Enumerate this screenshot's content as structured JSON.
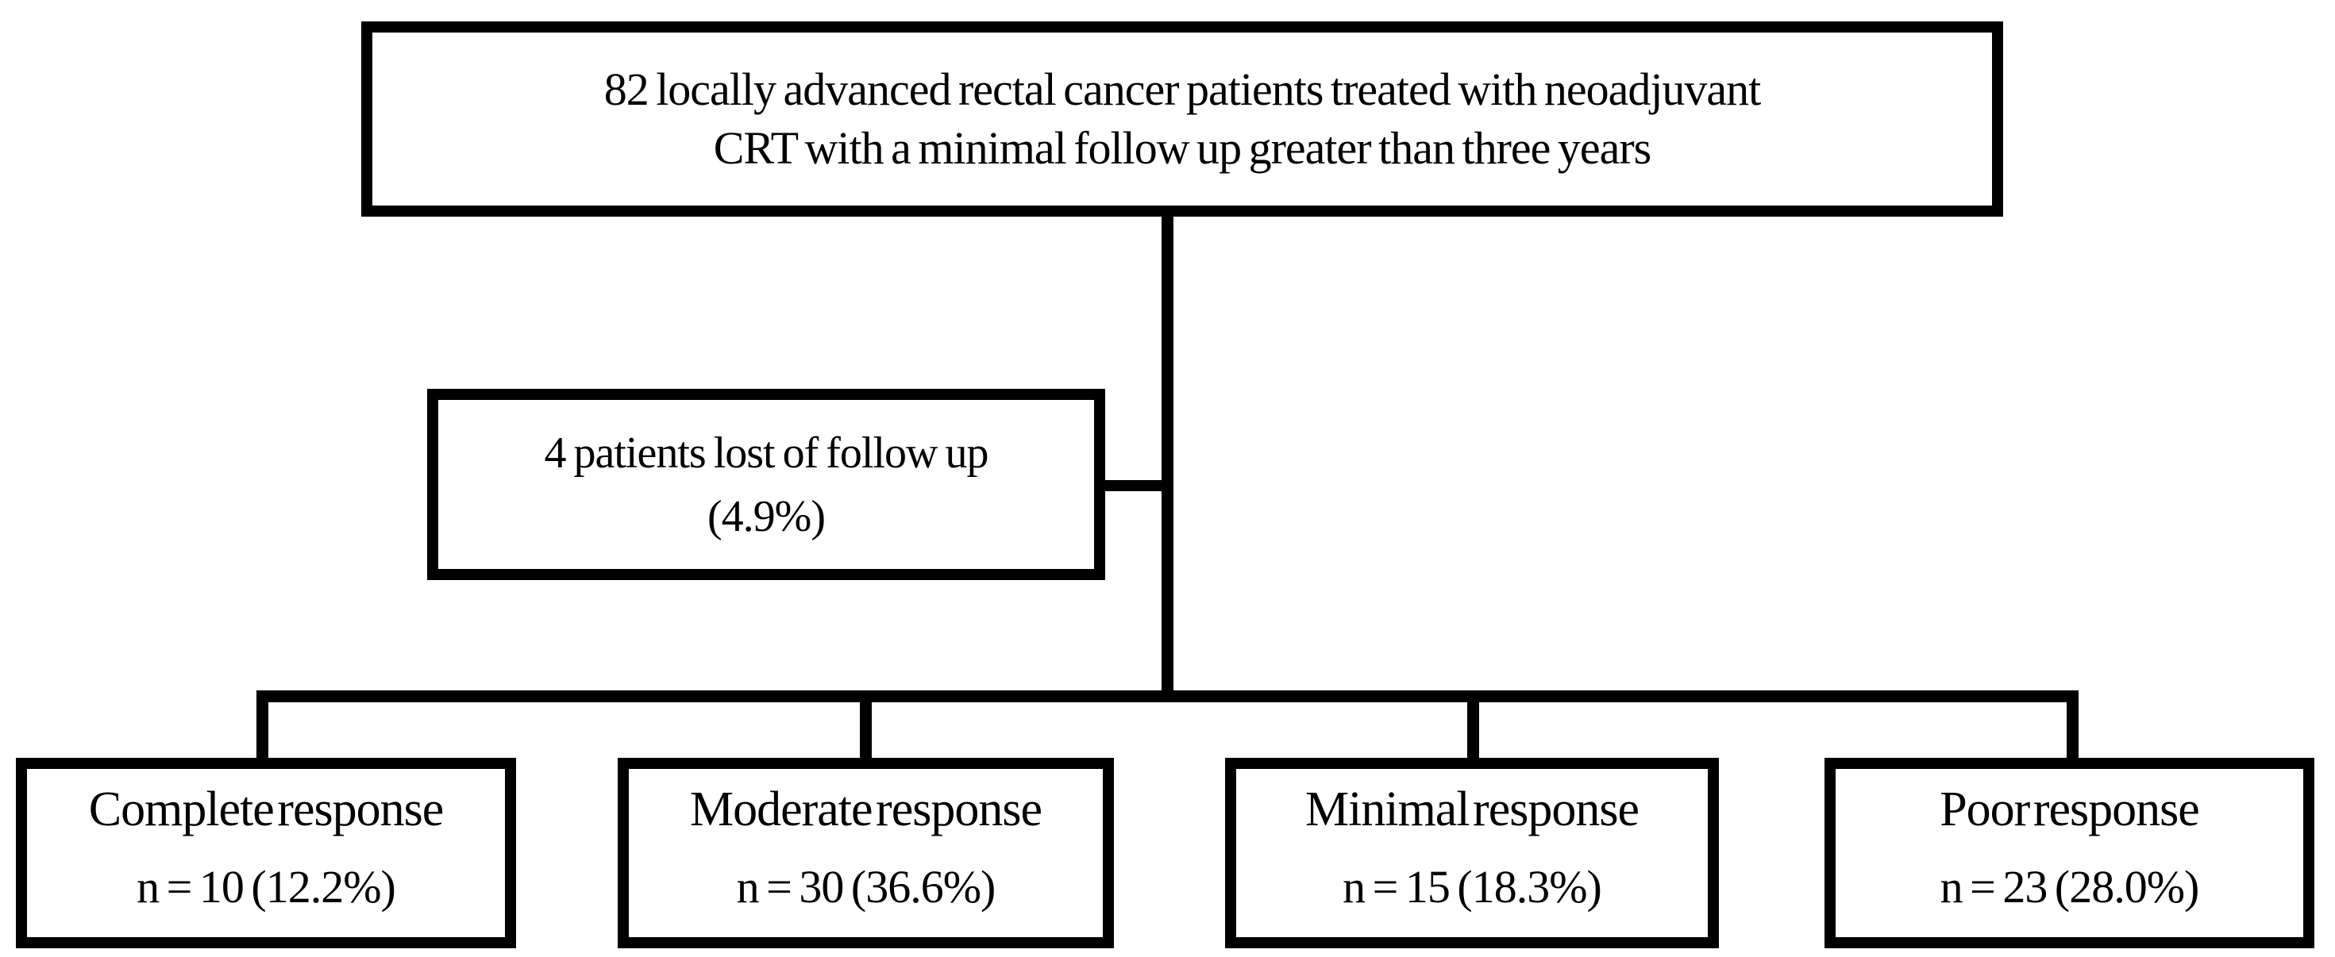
{
  "flowchart": {
    "root_box": {
      "line1": "82 locally advanced rectal cancer patients treated with neoadjuvant",
      "line2": "CRT with a minimal follow up greater than three years"
    },
    "exclusion_box": {
      "line1": "4 patients lost of follow up",
      "line2": "(4.9%)"
    },
    "outcome_boxes": [
      {
        "label": "Complete response",
        "value": "n = 10 (12.2%)"
      },
      {
        "label": "Moderate response",
        "value": "n = 30 (36.6%)"
      },
      {
        "label": "Minimal response",
        "value": "n = 15 (18.3%)"
      },
      {
        "label": "Poor response",
        "value": "n = 23 (28.0%)"
      }
    ],
    "colors": {
      "line": "#000000",
      "text": "#000000",
      "background": "#ffffff"
    }
  }
}
